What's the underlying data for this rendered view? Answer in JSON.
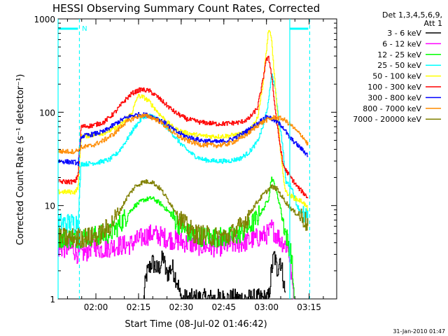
{
  "chart_data": {
    "type": "line",
    "title": "HESSI Observing Summary Count Rates, Corrected",
    "xlabel": "Start Time (08-Jul-02 01:46:42)",
    "ylabel": "Corrected Count Rate (s⁻¹ detector⁻¹)",
    "yscale": "log",
    "ylim": [
      1,
      1000
    ],
    "xlim_minutes": [
      0,
      98
    ],
    "x_ticks": [
      "02:00",
      "02:15",
      "02:30",
      "02:45",
      "03:00",
      "03:15"
    ],
    "y_ticks": [
      "1",
      "10",
      "100",
      "1000"
    ],
    "grid": false,
    "legend_position": "right",
    "legend_header": [
      "Det 1,3,4,5,6,9,",
      "Att 1"
    ],
    "annotation": "N",
    "timestamp": "31-Jan-2010 01:47",
    "series": [
      {
        "name": "3 - 6 keV",
        "color": "#000000",
        "points": [
          [
            30,
            1.0
          ],
          [
            31,
            1.8
          ],
          [
            33,
            2.5
          ],
          [
            35,
            2.0
          ],
          [
            37,
            2.8
          ],
          [
            38,
            1.8
          ],
          [
            40,
            2.2
          ],
          [
            42,
            1.5
          ],
          [
            43,
            1.0
          ],
          [
            74,
            1.0
          ],
          [
            75,
            2.0
          ],
          [
            76,
            3.0
          ],
          [
            77,
            2.0
          ],
          [
            78,
            2.8
          ],
          [
            79,
            1.8
          ],
          [
            80,
            1.0
          ]
        ]
      },
      {
        "name": "6 - 12 keV",
        "color": "#ff00ff",
        "points": [
          [
            0,
            3.5
          ],
          [
            5,
            3.5
          ],
          [
            7,
            3.0
          ],
          [
            10,
            3.2
          ],
          [
            12,
            3.8
          ],
          [
            15,
            3.4
          ],
          [
            20,
            3.7
          ],
          [
            25,
            3.8
          ],
          [
            28,
            4.3
          ],
          [
            30,
            4.6
          ],
          [
            33,
            5.0
          ],
          [
            36,
            4.7
          ],
          [
            40,
            4.3
          ],
          [
            45,
            4.0
          ],
          [
            50,
            3.7
          ],
          [
            55,
            3.6
          ],
          [
            60,
            3.8
          ],
          [
            65,
            4.0
          ],
          [
            70,
            4.5
          ],
          [
            74,
            5.0
          ],
          [
            75,
            5.8
          ],
          [
            76,
            5.2
          ],
          [
            77,
            4.8
          ],
          [
            79,
            4.0
          ],
          [
            81,
            3.5
          ],
          [
            82,
            1.8
          ],
          [
            83,
            1.0
          ]
        ]
      },
      {
        "name": "12 - 25 keV",
        "color": "#00ff00",
        "points": [
          [
            0,
            4.5
          ],
          [
            7,
            4.5
          ],
          [
            9,
            4.6
          ],
          [
            14,
            4.8
          ],
          [
            18,
            5.0
          ],
          [
            21,
            6.0
          ],
          [
            24,
            7.8
          ],
          [
            27,
            10.0
          ],
          [
            30,
            11.5
          ],
          [
            33,
            12.0
          ],
          [
            36,
            10.5
          ],
          [
            39,
            8.5
          ],
          [
            42,
            6.5
          ],
          [
            45,
            5.2
          ],
          [
            48,
            4.7
          ],
          [
            55,
            4.6
          ],
          [
            60,
            4.6
          ],
          [
            63,
            4.8
          ],
          [
            66,
            5.5
          ],
          [
            69,
            6.8
          ],
          [
            72,
            9.0
          ],
          [
            74,
            12.0
          ],
          [
            75,
            20.0
          ],
          [
            76,
            17.0
          ],
          [
            77,
            13.0
          ],
          [
            78,
            10.0
          ],
          [
            79,
            7.0
          ],
          [
            80,
            5.0
          ],
          [
            82,
            3.0
          ],
          [
            83,
            1.0
          ]
        ]
      },
      {
        "name": "25 - 50 keV",
        "color": "#00ffff",
        "points": [
          [
            0,
            6.5
          ],
          [
            6,
            6.5
          ],
          [
            7,
            7.0
          ],
          [
            8,
            28
          ],
          [
            10,
            28
          ],
          [
            14,
            29
          ],
          [
            18,
            31
          ],
          [
            21,
            37
          ],
          [
            24,
            50
          ],
          [
            27,
            70
          ],
          [
            30,
            90
          ],
          [
            33,
            92
          ],
          [
            36,
            80
          ],
          [
            39,
            65
          ],
          [
            42,
            50
          ],
          [
            45,
            40
          ],
          [
            48,
            34
          ],
          [
            51,
            31
          ],
          [
            55,
            30
          ],
          [
            60,
            30
          ],
          [
            64,
            32
          ],
          [
            67,
            37
          ],
          [
            70,
            48
          ],
          [
            72,
            70
          ],
          [
            74,
            130
          ],
          [
            75,
            260
          ],
          [
            76,
            200
          ],
          [
            77,
            120
          ],
          [
            78,
            70
          ],
          [
            79,
            42
          ],
          [
            80,
            18
          ],
          [
            82,
            16
          ],
          [
            84,
            10
          ],
          [
            86,
            8
          ],
          [
            88,
            7
          ]
        ]
      },
      {
        "name": "50 - 100 keV",
        "color": "#ffff00",
        "points": [
          [
            0,
            14
          ],
          [
            6,
            14
          ],
          [
            7,
            16
          ],
          [
            8,
            55
          ],
          [
            12,
            57
          ],
          [
            16,
            60
          ],
          [
            20,
            67
          ],
          [
            23,
            78
          ],
          [
            26,
            100
          ],
          [
            28,
            150
          ],
          [
            30,
            145
          ],
          [
            32,
            130
          ],
          [
            35,
            100
          ],
          [
            38,
            80
          ],
          [
            41,
            66
          ],
          [
            45,
            60
          ],
          [
            50,
            56
          ],
          [
            56,
            55
          ],
          [
            60,
            56
          ],
          [
            64,
            58
          ],
          [
            67,
            63
          ],
          [
            70,
            85
          ],
          [
            72,
            200
          ],
          [
            73,
            400
          ],
          [
            74,
            780
          ],
          [
            75,
            600
          ],
          [
            76,
            250
          ],
          [
            77,
            100
          ],
          [
            78,
            45
          ],
          [
            79,
            22
          ],
          [
            80,
            14
          ],
          [
            83,
            12
          ],
          [
            86,
            11
          ],
          [
            88,
            9
          ]
        ]
      },
      {
        "name": "100 - 300 keV",
        "color": "#ff0000",
        "points": [
          [
            0,
            18
          ],
          [
            6,
            18
          ],
          [
            7,
            22
          ],
          [
            8,
            70
          ],
          [
            12,
            72
          ],
          [
            16,
            78
          ],
          [
            20,
            100
          ],
          [
            23,
            130
          ],
          [
            26,
            160
          ],
          [
            29,
            175
          ],
          [
            32,
            170
          ],
          [
            35,
            145
          ],
          [
            38,
            120
          ],
          [
            41,
            100
          ],
          [
            45,
            85
          ],
          [
            50,
            78
          ],
          [
            56,
            75
          ],
          [
            60,
            76
          ],
          [
            64,
            78
          ],
          [
            67,
            85
          ],
          [
            70,
            110
          ],
          [
            72,
            220
          ],
          [
            73,
            360
          ],
          [
            74,
            380
          ],
          [
            75,
            260
          ],
          [
            76,
            130
          ],
          [
            77,
            70
          ],
          [
            78,
            45
          ],
          [
            79,
            28
          ],
          [
            80,
            24
          ],
          [
            84,
            16
          ],
          [
            88,
            12
          ]
        ]
      },
      {
        "name": "300 - 800 keV",
        "color": "#0000ff",
        "points": [
          [
            0,
            30
          ],
          [
            6,
            29
          ],
          [
            7,
            28
          ],
          [
            8,
            55
          ],
          [
            12,
            58
          ],
          [
            16,
            62
          ],
          [
            20,
            75
          ],
          [
            23,
            85
          ],
          [
            26,
            92
          ],
          [
            29,
            95
          ],
          [
            32,
            92
          ],
          [
            35,
            85
          ],
          [
            38,
            75
          ],
          [
            41,
            63
          ],
          [
            45,
            55
          ],
          [
            50,
            50
          ],
          [
            56,
            48
          ],
          [
            60,
            50
          ],
          [
            64,
            57
          ],
          [
            67,
            65
          ],
          [
            70,
            75
          ],
          [
            72,
            85
          ],
          [
            74,
            90
          ],
          [
            75,
            85
          ],
          [
            77,
            78
          ],
          [
            79,
            70
          ],
          [
            81,
            55
          ],
          [
            83,
            48
          ],
          [
            85,
            42
          ],
          [
            88,
            34
          ]
        ]
      },
      {
        "name": "800 - 7000 keV",
        "color": "#ff8c00",
        "points": [
          [
            0,
            38
          ],
          [
            6,
            38
          ],
          [
            7,
            40
          ],
          [
            8,
            42
          ],
          [
            12,
            44
          ],
          [
            16,
            50
          ],
          [
            20,
            60
          ],
          [
            23,
            75
          ],
          [
            26,
            85
          ],
          [
            29,
            92
          ],
          [
            32,
            90
          ],
          [
            35,
            82
          ],
          [
            38,
            70
          ],
          [
            41,
            58
          ],
          [
            45,
            50
          ],
          [
            50,
            45
          ],
          [
            56,
            44
          ],
          [
            60,
            46
          ],
          [
            64,
            52
          ],
          [
            67,
            60
          ],
          [
            70,
            72
          ],
          [
            73,
            82
          ],
          [
            76,
            88
          ],
          [
            79,
            85
          ],
          [
            82,
            72
          ],
          [
            84,
            62
          ],
          [
            86,
            55
          ],
          [
            88,
            44
          ]
        ]
      },
      {
        "name": "7000 - 20000 keV",
        "color": "#808000",
        "points": [
          [
            0,
            4.5
          ],
          [
            7,
            4.5
          ],
          [
            14,
            4.7
          ],
          [
            18,
            6.0
          ],
          [
            21,
            8.0
          ],
          [
            24,
            12.0
          ],
          [
            27,
            16.0
          ],
          [
            30,
            18.0
          ],
          [
            33,
            18.0
          ],
          [
            36,
            15.0
          ],
          [
            39,
            11.0
          ],
          [
            42,
            8.0
          ],
          [
            45,
            6.0
          ],
          [
            48,
            5.0
          ],
          [
            55,
            4.6
          ],
          [
            60,
            4.7
          ],
          [
            63,
            5.5
          ],
          [
            66,
            7.0
          ],
          [
            69,
            10.0
          ],
          [
            72,
            13.0
          ],
          [
            75,
            16.0
          ],
          [
            77,
            15.0
          ],
          [
            79,
            12.0
          ],
          [
            81,
            10.0
          ],
          [
            83,
            8.5
          ],
          [
            86,
            7.5
          ],
          [
            88,
            6.0
          ]
        ]
      }
    ],
    "boundaries": [
      {
        "type": "solid",
        "x": -1,
        "start": 0,
        "end": 7
      },
      {
        "type": "dashed",
        "x": 7.5
      },
      {
        "type": "solid",
        "x": 81.5,
        "start": 81.5,
        "end": 88
      },
      {
        "type": "dashed",
        "x": 88.5
      }
    ]
  }
}
